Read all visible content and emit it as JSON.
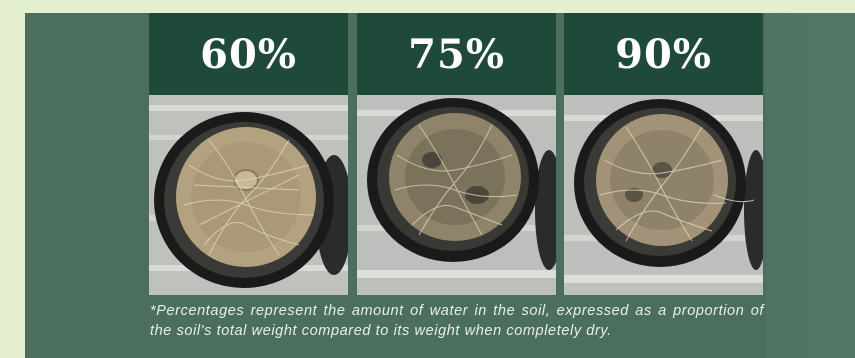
{
  "panels": [
    {
      "percentage": "60%",
      "photo": "root-mat-photo-60"
    },
    {
      "percentage": "75%",
      "photo": "root-mat-photo-75"
    },
    {
      "percentage": "90%",
      "photo": "root-mat-photo-90"
    }
  ],
  "caption": "*Percentages represent the amount of water in the soil, expressed as a proportion of the soil's total weight compared to its weight when completely dry.",
  "colors": {
    "background": "#e4efcf",
    "card": "#4b6e5e",
    "header": "#1f4a3a",
    "label_text": "#ffffff"
  }
}
